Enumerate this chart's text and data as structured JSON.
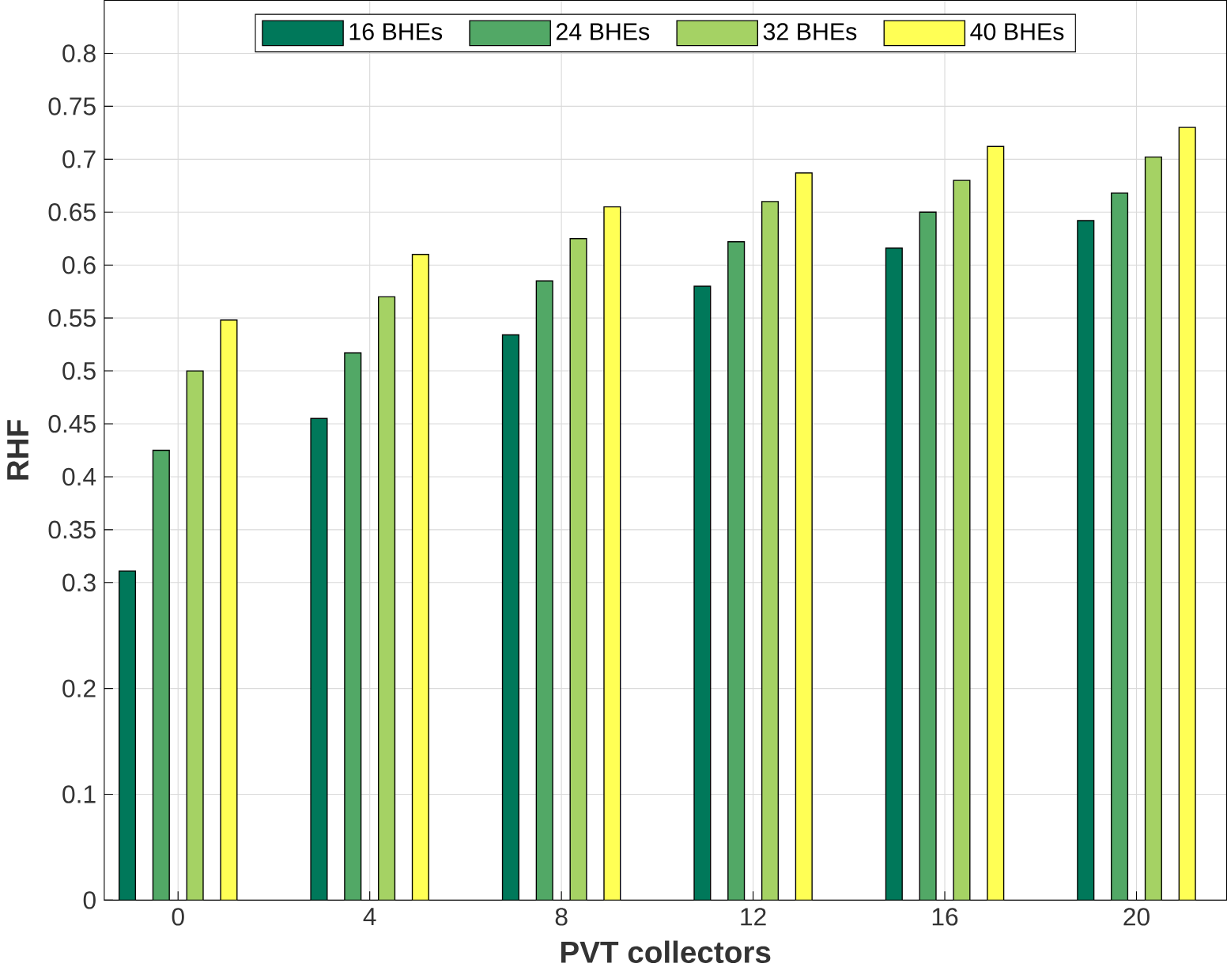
{
  "chart_data": {
    "type": "bar",
    "xlabel": "PVT collectors",
    "ylabel": "RHF",
    "categories": [
      "0",
      "4",
      "8",
      "12",
      "16",
      "20"
    ],
    "series": [
      {
        "name": "16 BHEs",
        "color": "#00785a",
        "values": [
          0.311,
          0.455,
          0.534,
          0.58,
          0.616,
          0.642
        ]
      },
      {
        "name": "24 BHEs",
        "color": "#52a866",
        "values": [
          0.425,
          0.517,
          0.585,
          0.622,
          0.65,
          0.668
        ]
      },
      {
        "name": "32 BHEs",
        "color": "#a5d264",
        "values": [
          0.5,
          0.57,
          0.625,
          0.66,
          0.68,
          0.702
        ]
      },
      {
        "name": "40 BHEs",
        "color": "#ffff55",
        "values": [
          0.548,
          0.61,
          0.655,
          0.687,
          0.712,
          0.73
        ]
      }
    ],
    "ylim": [
      0,
      0.85
    ],
    "yticks": [
      0,
      0.1,
      0.2,
      0.3,
      0.35,
      0.4,
      0.45,
      0.5,
      0.55,
      0.6,
      0.65,
      0.7,
      0.75,
      0.8
    ],
    "grid": true,
    "legend": "top"
  }
}
